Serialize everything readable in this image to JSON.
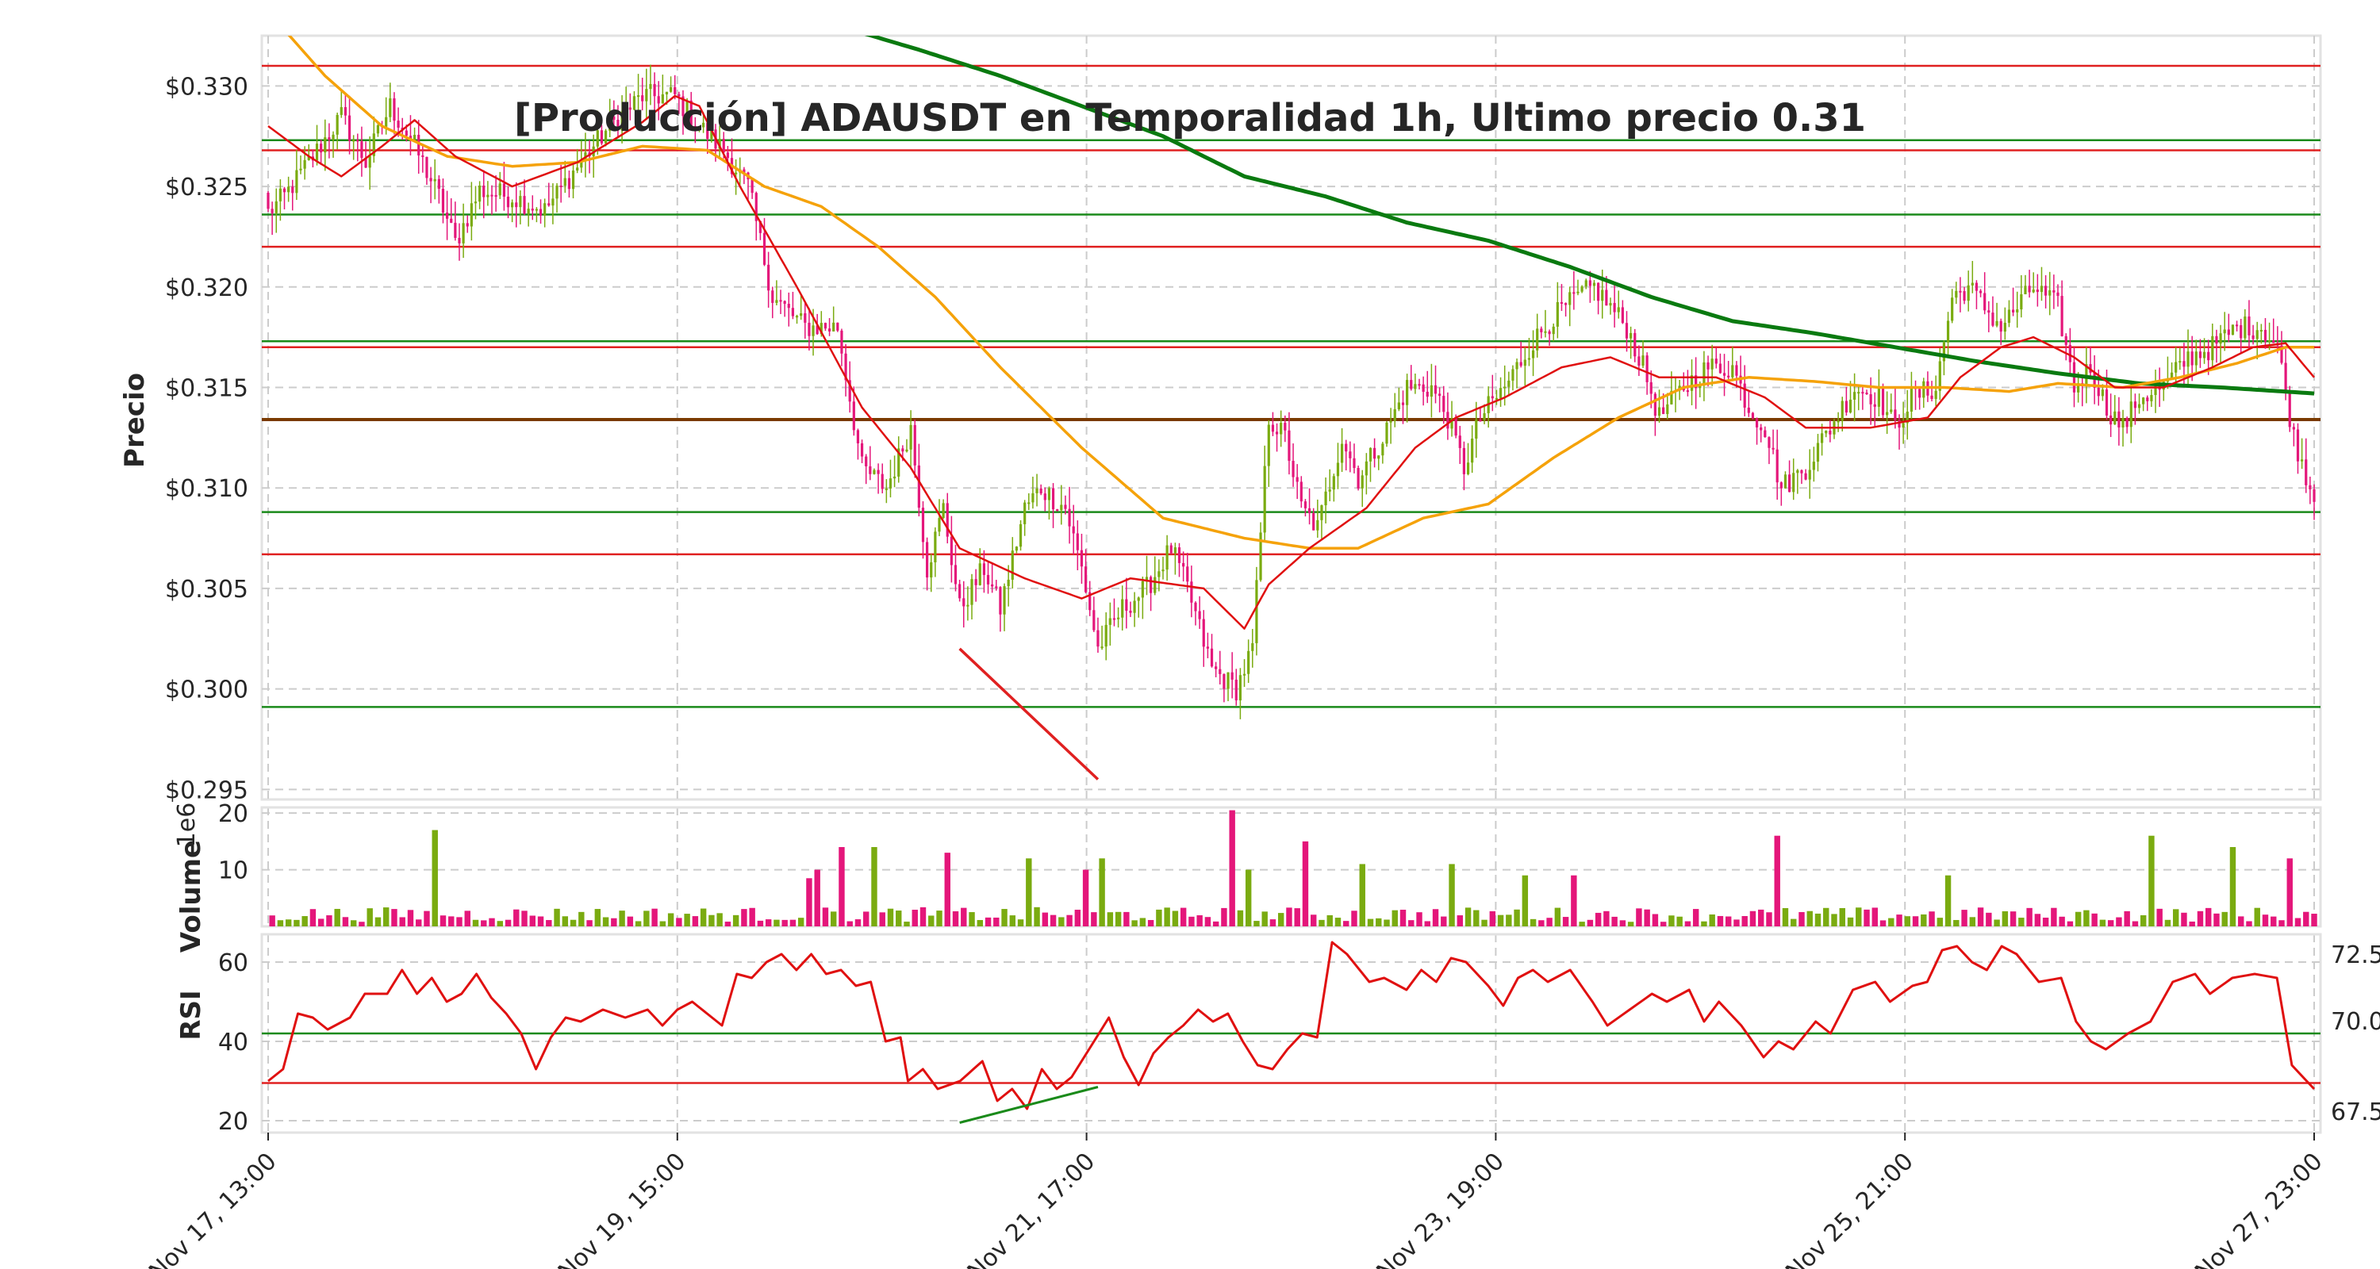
{
  "chart_data": {
    "type": "candlestick",
    "title": "[Producción] ADAUSDT en Temporalidad 1h, Ultimo precio 0.31",
    "colors": {
      "up": "#7aab10",
      "down": "#e4167a",
      "ema_fast": "#e01010",
      "ema_mid": "#f5a20a",
      "ema_slow": "#0a7a10",
      "support": "#1a8a1a",
      "resistance": "#e02020",
      "pivot": "#7a3a00",
      "rsi": "#e01010"
    },
    "x_ticks": [
      "Nov 17, 13:00",
      "Nov 19, 15:00",
      "Nov 21, 17:00",
      "Nov 23, 19:00",
      "Nov 25, 21:00",
      "Nov 27, 23:00"
    ],
    "price_panel": {
      "ylabel": "Precio",
      "ylim": [
        0.2945,
        0.3325
      ],
      "yticks": [
        "$0.295",
        "$0.300",
        "$0.305",
        "$0.310",
        "$0.315",
        "$0.320",
        "$0.325",
        "$0.330"
      ],
      "resistance_levels": [
        0.331,
        0.3268,
        0.322,
        0.317,
        0.3067
      ],
      "support_levels": [
        0.3273,
        0.3236,
        0.3173,
        0.3088,
        0.2991
      ],
      "pivot_level": 0.3134,
      "divergence_line": [
        [
          170,
          0.302
        ],
        [
          204,
          0.2955
        ]
      ],
      "close_keypoints": [
        [
          0,
          0.3237
        ],
        [
          4,
          0.3245
        ],
        [
          10,
          0.3262
        ],
        [
          18,
          0.3285
        ],
        [
          24,
          0.3262
        ],
        [
          30,
          0.329
        ],
        [
          36,
          0.327
        ],
        [
          42,
          0.3245
        ],
        [
          46,
          0.3222
        ],
        [
          52,
          0.3248
        ],
        [
          60,
          0.3245
        ],
        [
          68,
          0.3238
        ],
        [
          76,
          0.326
        ],
        [
          84,
          0.328
        ],
        [
          92,
          0.3295
        ],
        [
          100,
          0.3295
        ],
        [
          106,
          0.328
        ],
        [
          112,
          0.3268
        ],
        [
          118,
          0.325
        ],
        [
          124,
          0.3195
        ],
        [
          132,
          0.318
        ],
        [
          140,
          0.318
        ],
        [
          146,
          0.311
        ],
        [
          152,
          0.31
        ],
        [
          158,
          0.313
        ],
        [
          162,
          0.306
        ],
        [
          166,
          0.309
        ],
        [
          170,
          0.304
        ],
        [
          176,
          0.306
        ],
        [
          180,
          0.304
        ],
        [
          186,
          0.309
        ],
        [
          190,
          0.31
        ],
        [
          196,
          0.309
        ],
        [
          200,
          0.306
        ],
        [
          204,
          0.302
        ],
        [
          210,
          0.304
        ],
        [
          216,
          0.305
        ],
        [
          222,
          0.307
        ],
        [
          226,
          0.305
        ],
        [
          232,
          0.301
        ],
        [
          238,
          0.3
        ],
        [
          242,
          0.302
        ],
        [
          246,
          0.3135
        ],
        [
          250,
          0.3125
        ],
        [
          254,
          0.309
        ],
        [
          258,
          0.308
        ],
        [
          264,
          0.3125
        ],
        [
          268,
          0.3105
        ],
        [
          274,
          0.3125
        ],
        [
          280,
          0.315
        ],
        [
          286,
          0.315
        ],
        [
          290,
          0.3135
        ],
        [
          294,
          0.311
        ],
        [
          298,
          0.3135
        ],
        [
          304,
          0.315
        ],
        [
          310,
          0.317
        ],
        [
          316,
          0.3185
        ],
        [
          322,
          0.3195
        ],
        [
          326,
          0.32
        ],
        [
          330,
          0.319
        ],
        [
          334,
          0.318
        ],
        [
          338,
          0.316
        ],
        [
          342,
          0.3135
        ],
        [
          348,
          0.315
        ],
        [
          354,
          0.316
        ],
        [
          360,
          0.316
        ],
        [
          364,
          0.314
        ],
        [
          368,
          0.313
        ],
        [
          372,
          0.31
        ],
        [
          378,
          0.311
        ],
        [
          384,
          0.313
        ],
        [
          390,
          0.315
        ],
        [
          396,
          0.3145
        ],
        [
          400,
          0.313
        ],
        [
          404,
          0.3145
        ],
        [
          410,
          0.315
        ],
        [
          414,
          0.3195
        ],
        [
          418,
          0.32
        ],
        [
          422,
          0.319
        ],
        [
          426,
          0.318
        ],
        [
          430,
          0.319
        ],
        [
          434,
          0.32
        ],
        [
          440,
          0.319
        ],
        [
          444,
          0.315
        ],
        [
          448,
          0.316
        ],
        [
          452,
          0.314
        ],
        [
          456,
          0.313
        ],
        [
          460,
          0.3145
        ],
        [
          466,
          0.315
        ],
        [
          472,
          0.3165
        ],
        [
          478,
          0.317
        ],
        [
          484,
          0.318
        ],
        [
          490,
          0.318
        ],
        [
          494,
          0.317
        ],
        [
          498,
          0.3125
        ],
        [
          503,
          0.3095
        ]
      ],
      "ema_fast_keypoints": [
        [
          0,
          0.328
        ],
        [
          10,
          0.3265
        ],
        [
          18,
          0.3255
        ],
        [
          28,
          0.327
        ],
        [
          36,
          0.3283
        ],
        [
          46,
          0.3265
        ],
        [
          60,
          0.325
        ],
        [
          76,
          0.3262
        ],
        [
          92,
          0.3282
        ],
        [
          100,
          0.3295
        ],
        [
          106,
          0.329
        ],
        [
          116,
          0.325
        ],
        [
          130,
          0.32
        ],
        [
          146,
          0.314
        ],
        [
          158,
          0.311
        ],
        [
          170,
          0.307
        ],
        [
          186,
          0.3055
        ],
        [
          200,
          0.3045
        ],
        [
          212,
          0.3055
        ],
        [
          230,
          0.305
        ],
        [
          240,
          0.303
        ],
        [
          246,
          0.3052
        ],
        [
          256,
          0.307
        ],
        [
          270,
          0.309
        ],
        [
          282,
          0.312
        ],
        [
          292,
          0.3135
        ],
        [
          304,
          0.3145
        ],
        [
          318,
          0.316
        ],
        [
          330,
          0.3165
        ],
        [
          342,
          0.3155
        ],
        [
          356,
          0.3155
        ],
        [
          368,
          0.3145
        ],
        [
          378,
          0.313
        ],
        [
          394,
          0.313
        ],
        [
          408,
          0.3135
        ],
        [
          416,
          0.3155
        ],
        [
          426,
          0.317
        ],
        [
          434,
          0.3175
        ],
        [
          444,
          0.3165
        ],
        [
          454,
          0.315
        ],
        [
          466,
          0.315
        ],
        [
          478,
          0.316
        ],
        [
          488,
          0.317
        ],
        [
          496,
          0.3172
        ],
        [
          503,
          0.3155
        ]
      ],
      "ema_mid_keypoints": [
        [
          0,
          0.3337
        ],
        [
          14,
          0.3305
        ],
        [
          28,
          0.328
        ],
        [
          44,
          0.3265
        ],
        [
          60,
          0.326
        ],
        [
          76,
          0.3262
        ],
        [
          92,
          0.327
        ],
        [
          108,
          0.3268
        ],
        [
          122,
          0.325
        ],
        [
          136,
          0.324
        ],
        [
          150,
          0.322
        ],
        [
          164,
          0.3195
        ],
        [
          180,
          0.316
        ],
        [
          200,
          0.312
        ],
        [
          220,
          0.3085
        ],
        [
          240,
          0.3075
        ],
        [
          256,
          0.307
        ],
        [
          268,
          0.307
        ],
        [
          284,
          0.3085
        ],
        [
          300,
          0.3092
        ],
        [
          316,
          0.3115
        ],
        [
          332,
          0.3135
        ],
        [
          348,
          0.315
        ],
        [
          364,
          0.3155
        ],
        [
          380,
          0.3153
        ],
        [
          396,
          0.315
        ],
        [
          412,
          0.315
        ],
        [
          428,
          0.3148
        ],
        [
          440,
          0.3152
        ],
        [
          456,
          0.315
        ],
        [
          470,
          0.3155
        ],
        [
          484,
          0.3162
        ],
        [
          496,
          0.317
        ],
        [
          503,
          0.317
        ]
      ],
      "ema_slow_keypoints": [
        [
          120,
          0.3345
        ],
        [
          140,
          0.333
        ],
        [
          160,
          0.3318
        ],
        [
          180,
          0.3305
        ],
        [
          200,
          0.329
        ],
        [
          220,
          0.3275
        ],
        [
          240,
          0.3255
        ],
        [
          260,
          0.3245
        ],
        [
          280,
          0.3232
        ],
        [
          300,
          0.3223
        ],
        [
          320,
          0.321
        ],
        [
          340,
          0.3195
        ],
        [
          360,
          0.3183
        ],
        [
          380,
          0.3177
        ],
        [
          400,
          0.317
        ],
        [
          420,
          0.3163
        ],
        [
          440,
          0.3157
        ],
        [
          460,
          0.3152
        ],
        [
          480,
          0.315
        ],
        [
          503,
          0.3147
        ]
      ]
    },
    "volume_panel": {
      "ylabel": "Volume",
      "scale_label": "1e6",
      "ylim": [
        0,
        21
      ],
      "yticks": [
        "10",
        "20"
      ],
      "spike_bars": [
        [
          40,
          17
        ],
        [
          132,
          8.5
        ],
        [
          134,
          10
        ],
        [
          140,
          14
        ],
        [
          148,
          14
        ],
        [
          166,
          13
        ],
        [
          186,
          12
        ],
        [
          200,
          10
        ],
        [
          204,
          12
        ],
        [
          236,
          20.5
        ],
        [
          240,
          10
        ],
        [
          254,
          15
        ],
        [
          268,
          11
        ],
        [
          290,
          11
        ],
        [
          308,
          9
        ],
        [
          320,
          9
        ],
        [
          370,
          16
        ],
        [
          412,
          9
        ],
        [
          462,
          16
        ],
        [
          482,
          14
        ],
        [
          496,
          12
        ]
      ]
    },
    "rsi_panel": {
      "ylabel": "RSI",
      "ylim": [
        17,
        67
      ],
      "yticks": [
        "20",
        "40",
        "60"
      ],
      "right_ticks": [
        "67.5",
        "70.0",
        "72.5"
      ],
      "overbought_line": 42,
      "oversold_line": 29.5,
      "divergence_line": [
        [
          170,
          19.5
        ],
        [
          204,
          28.5
        ]
      ],
      "keypoints": [
        [
          0,
          30
        ],
        [
          4,
          33
        ],
        [
          8,
          47
        ],
        [
          12,
          46
        ],
        [
          16,
          43
        ],
        [
          22,
          46
        ],
        [
          26,
          52
        ],
        [
          32,
          52
        ],
        [
          36,
          58
        ],
        [
          40,
          52
        ],
        [
          44,
          56
        ],
        [
          48,
          50
        ],
        [
          52,
          52
        ],
        [
          56,
          57
        ],
        [
          60,
          51
        ],
        [
          64,
          47
        ],
        [
          68,
          42
        ],
        [
          72,
          33
        ],
        [
          76,
          41
        ],
        [
          80,
          46
        ],
        [
          84,
          45
        ],
        [
          90,
          48
        ],
        [
          96,
          46
        ],
        [
          102,
          48
        ],
        [
          106,
          44
        ],
        [
          110,
          48
        ],
        [
          114,
          50
        ],
        [
          118,
          47
        ],
        [
          122,
          44
        ],
        [
          126,
          57
        ],
        [
          130,
          56
        ],
        [
          134,
          60
        ],
        [
          138,
          62
        ],
        [
          142,
          58
        ],
        [
          146,
          62
        ],
        [
          150,
          57
        ],
        [
          154,
          58
        ],
        [
          158,
          54
        ],
        [
          162,
          55
        ],
        [
          166,
          40
        ],
        [
          170,
          41
        ],
        [
          172,
          30
        ],
        [
          176,
          33
        ],
        [
          180,
          28
        ],
        [
          186,
          30
        ],
        [
          192,
          35
        ],
        [
          196,
          25
        ],
        [
          200,
          28
        ],
        [
          204,
          23
        ],
        [
          208,
          33
        ],
        [
          212,
          28
        ],
        [
          216,
          31
        ],
        [
          222,
          40
        ],
        [
          226,
          46
        ],
        [
          230,
          36
        ],
        [
          234,
          29
        ],
        [
          238,
          37
        ],
        [
          242,
          41
        ],
        [
          246,
          44
        ],
        [
          250,
          48
        ],
        [
          254,
          45
        ],
        [
          258,
          47
        ],
        [
          262,
          40
        ],
        [
          266,
          34
        ],
        [
          270,
          33
        ],
        [
          274,
          38
        ],
        [
          278,
          42
        ],
        [
          282,
          41
        ],
        [
          286,
          65
        ],
        [
          290,
          62
        ],
        [
          296,
          55
        ],
        [
          300,
          56
        ],
        [
          306,
          53
        ],
        [
          310,
          58
        ],
        [
          314,
          55
        ],
        [
          318,
          61
        ],
        [
          322,
          60
        ],
        [
          328,
          54
        ],
        [
          332,
          49
        ],
        [
          336,
          56
        ],
        [
          340,
          58
        ],
        [
          344,
          55
        ],
        [
          350,
          58
        ],
        [
          356,
          50
        ],
        [
          360,
          44
        ],
        [
          366,
          48
        ],
        [
          372,
          52
        ],
        [
          376,
          50
        ],
        [
          382,
          53
        ],
        [
          386,
          45
        ],
        [
          390,
          50
        ],
        [
          396,
          44
        ],
        [
          402,
          36
        ],
        [
          406,
          40
        ],
        [
          410,
          38
        ],
        [
          416,
          45
        ],
        [
          420,
          42
        ],
        [
          426,
          53
        ],
        [
          432,
          55
        ],
        [
          436,
          50
        ],
        [
          442,
          54
        ],
        [
          446,
          55
        ],
        [
          450,
          63
        ],
        [
          454,
          64
        ],
        [
          458,
          60
        ],
        [
          462,
          58
        ],
        [
          466,
          64
        ],
        [
          470,
          62
        ],
        [
          476,
          55
        ],
        [
          482,
          56
        ],
        [
          486,
          45
        ],
        [
          490,
          40
        ],
        [
          494,
          38
        ],
        [
          500,
          42
        ],
        [
          506,
          45
        ],
        [
          512,
          55
        ],
        [
          518,
          57
        ],
        [
          522,
          52
        ],
        [
          528,
          56
        ],
        [
          534,
          57
        ],
        [
          540,
          56
        ],
        [
          544,
          34
        ],
        [
          548,
          30
        ],
        [
          550,
          28
        ]
      ]
    }
  }
}
